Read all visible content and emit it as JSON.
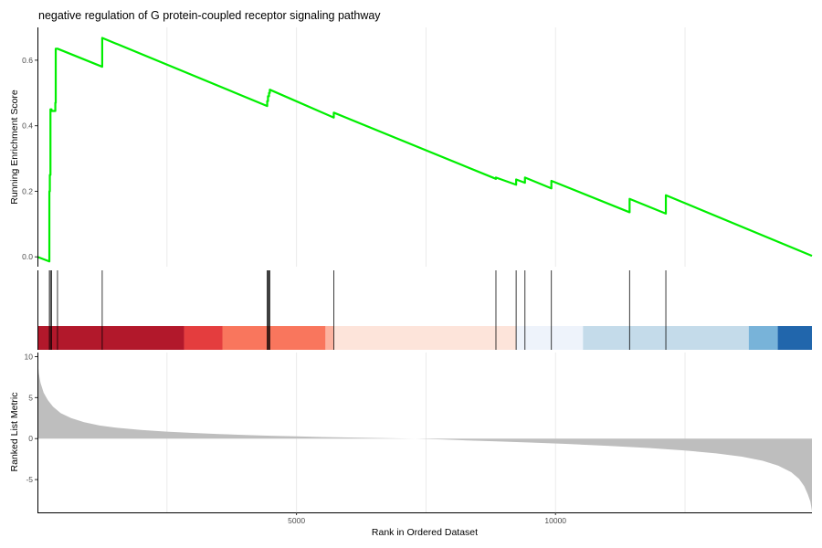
{
  "chart_data": {
    "type": "line",
    "title": "negative regulation of G protein-coupled receptor signaling pathway",
    "xlabel": "Rank in Ordered Dataset",
    "x_range": [
      0,
      14950
    ],
    "x_ticks": [
      5000,
      10000
    ],
    "grid_x_minor": [
      2500,
      7500,
      12500
    ],
    "grid": true,
    "legend": "none",
    "panels": {
      "enrichment": {
        "ylabel": "Running Enrichment Score",
        "ylim": [
          -0.03,
          0.7
        ],
        "y_ticks": [
          0.0,
          0.2,
          0.4,
          0.6
        ],
        "line_color": "#00ee00",
        "series": [
          {
            "x": [
              0,
              230,
              230,
              239,
              239,
              251,
              251,
              272,
              272,
              345,
              345,
              353,
              353,
              387,
              387,
              1250,
              1250,
              4435,
              4435,
              4450,
              4450,
              4470,
              4470,
              4485,
              4485,
              5720,
              5720,
              8850,
              8850,
              9240,
              9240,
              9410,
              9410,
              9920,
              9920,
              11430,
              11430,
              12130,
              12130,
              14950
            ],
            "y": [
              0.0,
              -0.014,
              0.2,
              0.2,
              0.25,
              0.25,
              0.45,
              0.45,
              0.445,
              0.445,
              0.47,
              0.47,
              0.635,
              0.635,
              0.635,
              0.58,
              0.668,
              0.46,
              0.475,
              0.475,
              0.49,
              0.49,
              0.5,
              0.5,
              0.51,
              0.425,
              0.44,
              0.238,
              0.242,
              0.22,
              0.236,
              0.226,
              0.242,
              0.209,
              0.232,
              0.136,
              0.177,
              0.132,
              0.188,
              0.003
            ]
          }
        ]
      },
      "hits": {
        "positions": [
          230,
          251,
          272,
          387,
          1250,
          4435,
          4450,
          4470,
          4485,
          5720,
          8850,
          9240,
          9410,
          9920,
          11430,
          12130
        ]
      },
      "color_bar": {
        "segments": [
          {
            "x0": 0,
            "x1": 2830,
            "color": "#b2182b"
          },
          {
            "x0": 2830,
            "x1": 3570,
            "color": "#e43d3e"
          },
          {
            "x0": 3570,
            "x1": 5560,
            "color": "#f9765d"
          },
          {
            "x0": 5560,
            "x1": 5720,
            "color": "#fcb3a0"
          },
          {
            "x0": 5720,
            "x1": 9240,
            "color": "#fde4da"
          },
          {
            "x0": 9240,
            "x1": 10530,
            "color": "#eef3fb"
          },
          {
            "x0": 10530,
            "x1": 13730,
            "color": "#c4dbea"
          },
          {
            "x0": 13730,
            "x1": 14290,
            "color": "#78b3d9"
          },
          {
            "x0": 14290,
            "x1": 14950,
            "color": "#2166ac"
          }
        ]
      },
      "ranked_metric": {
        "ylabel": "Ranked List Metric",
        "ylim": [
          -9,
          10.5
        ],
        "y_ticks": [
          -5,
          0,
          5,
          10
        ],
        "fill_color": "#bebebe",
        "x": [
          0,
          25,
          60,
          120,
          200,
          300,
          450,
          650,
          900,
          1200,
          1500,
          2000,
          2500,
          3000,
          3500,
          4000,
          4500,
          5000,
          5500,
          6000,
          6500,
          7000,
          7300,
          7500,
          7800,
          8200,
          8800,
          9500,
          10200,
          11000,
          11800,
          12500,
          13100,
          13600,
          14000,
          14300,
          14550,
          14700,
          14800,
          14870,
          14920,
          14950
        ],
        "y": [
          10.0,
          8.0,
          6.8,
          5.6,
          4.7,
          3.9,
          3.1,
          2.5,
          2.0,
          1.6,
          1.35,
          1.05,
          0.85,
          0.7,
          0.55,
          0.45,
          0.35,
          0.27,
          0.2,
          0.14,
          0.08,
          0.03,
          0.0,
          -0.05,
          -0.1,
          -0.2,
          -0.32,
          -0.48,
          -0.65,
          -0.88,
          -1.15,
          -1.45,
          -1.8,
          -2.2,
          -2.7,
          -3.3,
          -4.1,
          -4.9,
          -5.8,
          -6.8,
          -7.7,
          -8.8
        ]
      }
    }
  }
}
